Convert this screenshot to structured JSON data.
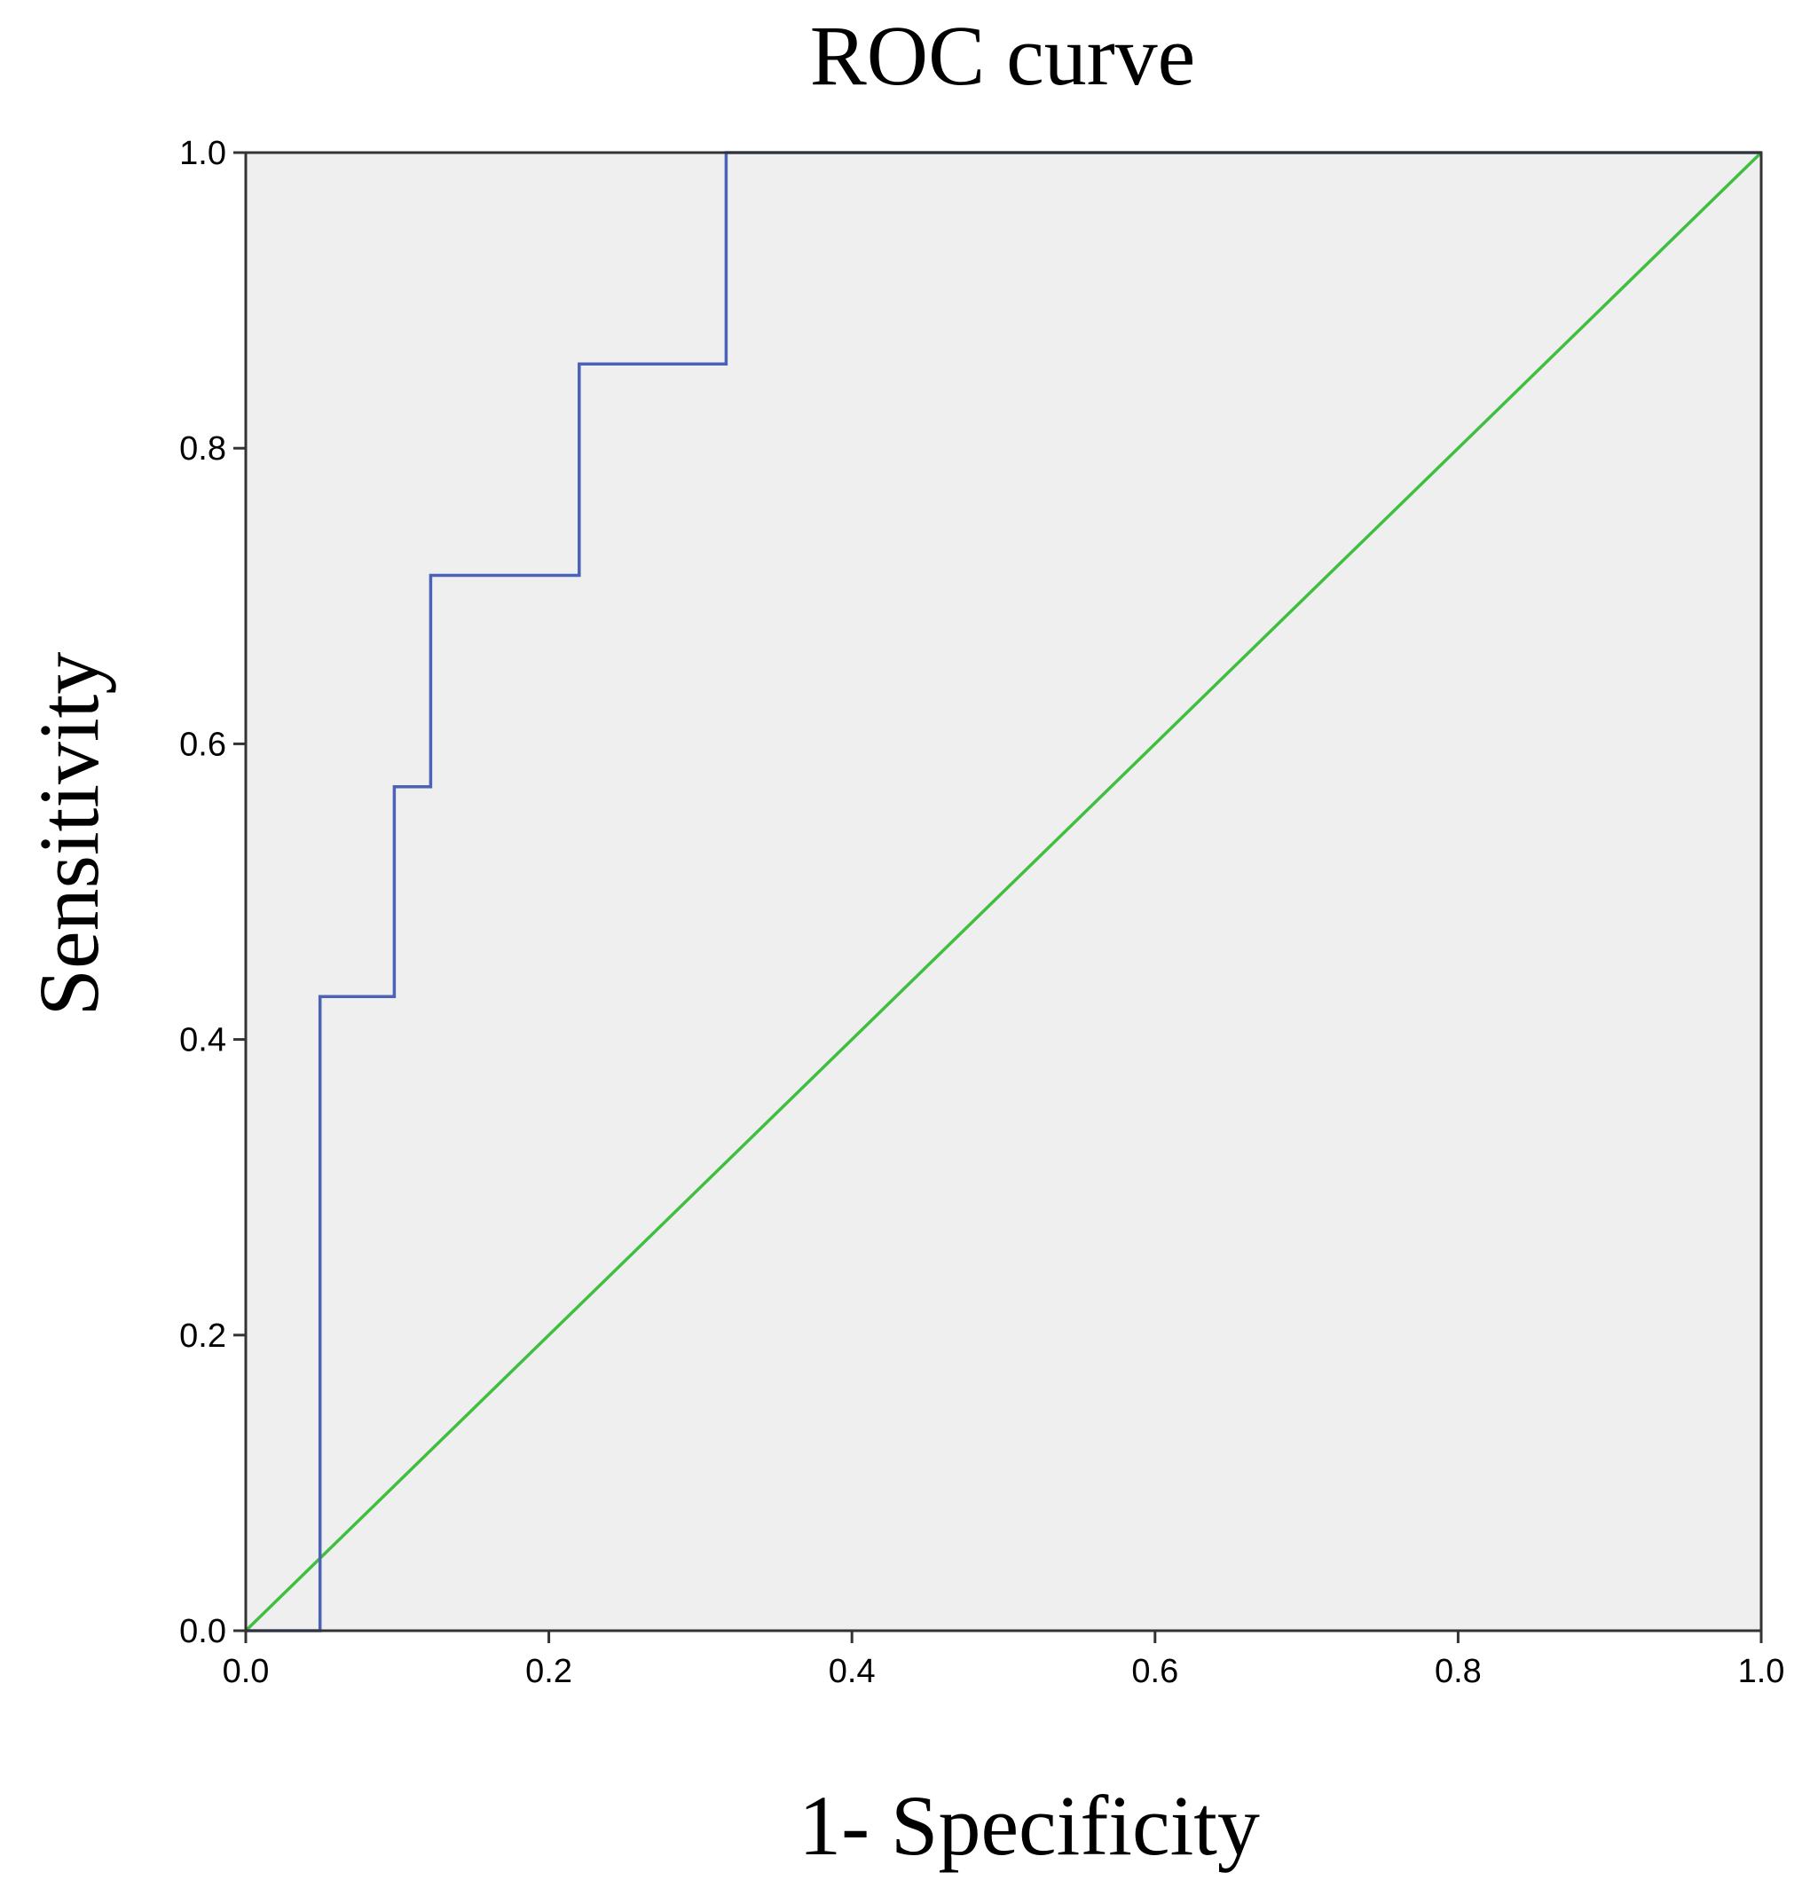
{
  "chart_data": {
    "type": "line",
    "title": "ROC curve",
    "xlabel": "1- Specificity",
    "ylabel": "Sensitivity",
    "xlim": [
      0.0,
      1.0
    ],
    "ylim": [
      0.0,
      1.0
    ],
    "x_ticks": [
      "0.0",
      "0.2",
      "0.4",
      "0.6",
      "0.8",
      "1.0"
    ],
    "y_ticks": [
      "0.0",
      "0.2",
      "0.4",
      "0.6",
      "0.8",
      "1.0"
    ],
    "grid": false,
    "legend": "none",
    "plot_background": "#efefef",
    "series": [
      {
        "color": "#4a62b8",
        "step": true,
        "x": [
          0.0,
          0.049,
          0.049,
          0.098,
          0.098,
          0.122,
          0.122,
          0.22,
          0.22,
          0.317,
          0.317,
          1.0
        ],
        "y": [
          0.0,
          0.0,
          0.429,
          0.429,
          0.571,
          0.571,
          0.714,
          0.714,
          0.857,
          0.857,
          1.0,
          1.0
        ]
      },
      {
        "color": "#3fbf3f",
        "reference": true,
        "x": [
          0.0,
          1.0
        ],
        "y": [
          0.0,
          1.0
        ]
      }
    ]
  }
}
